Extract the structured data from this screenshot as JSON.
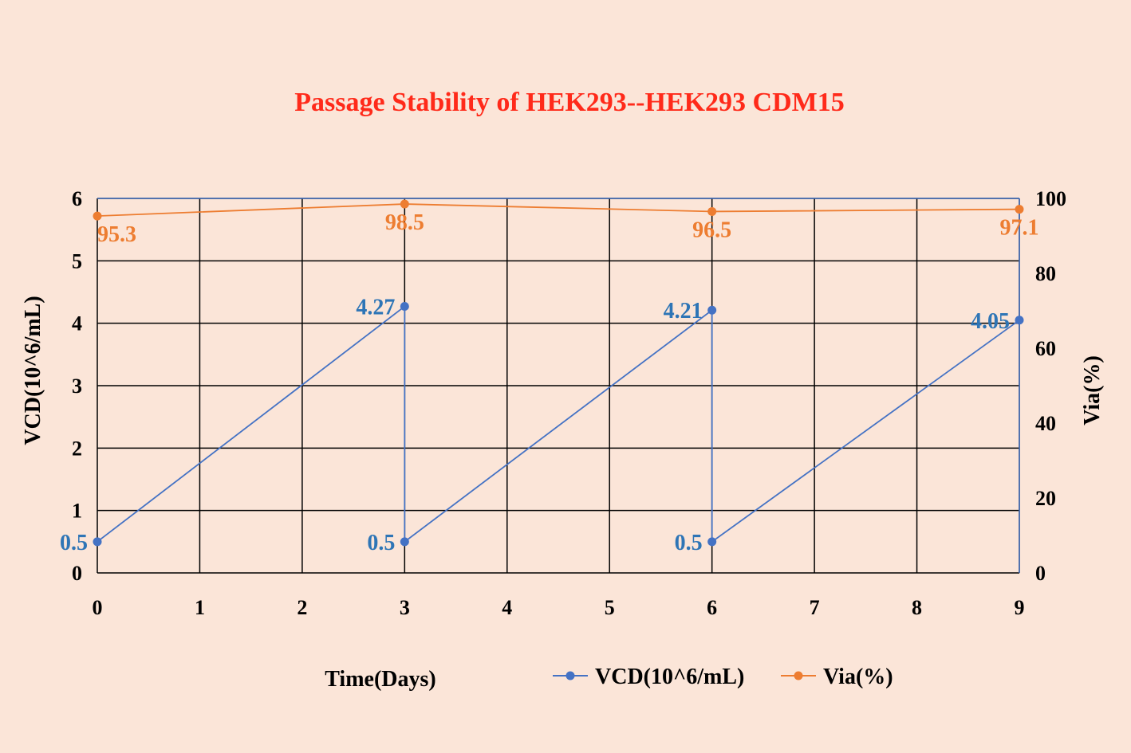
{
  "colors": {
    "background": "#fbe5d8",
    "title": "#ff2a1a",
    "vcd": "#4472c4",
    "via": "#ed7d31",
    "vcd_label": "#2e75b6",
    "grid": "#000000",
    "axis_text": "#000000"
  },
  "chart_data": {
    "type": "line",
    "title": "Passage Stability of HEK293--HEK293 CDM15",
    "xlabel": "Time(Days)",
    "ylabel": "VCD(10^6/mL)",
    "y2label": "Via(%)",
    "xlim": [
      0,
      9
    ],
    "ylim": [
      0,
      6
    ],
    "y2lim": [
      0,
      100
    ],
    "x_ticks": [
      "0",
      "1",
      "2",
      "3",
      "4",
      "5",
      "6",
      "7",
      "8",
      "9"
    ],
    "y_ticks": [
      "0",
      "1",
      "2",
      "3",
      "4",
      "5",
      "6"
    ],
    "y2_ticks": [
      "0",
      "20",
      "40",
      "60",
      "80",
      "100"
    ],
    "grid": true,
    "legend_position": "bottom",
    "series": [
      {
        "name": "VCD(10^6/mL)",
        "axis": "left",
        "points": [
          {
            "x": 0,
            "y": 0.5,
            "label": "0.5"
          },
          {
            "x": 3,
            "y": 4.27,
            "label": "4.27"
          },
          {
            "x": 3,
            "y": 0.5,
            "label": "0.5"
          },
          {
            "x": 6,
            "y": 4.21,
            "label": "4.21"
          },
          {
            "x": 6,
            "y": 0.5,
            "label": "0.5"
          },
          {
            "x": 9,
            "y": 4.05,
            "label": "4.05"
          }
        ]
      },
      {
        "name": "Via(%)",
        "axis": "right",
        "points": [
          {
            "x": 0,
            "y": 95.3,
            "label": "95.3"
          },
          {
            "x": 3,
            "y": 98.5,
            "label": "98.5"
          },
          {
            "x": 6,
            "y": 96.5,
            "label": "96.5"
          },
          {
            "x": 9,
            "y": 97.1,
            "label": "97.1"
          }
        ]
      }
    ]
  }
}
